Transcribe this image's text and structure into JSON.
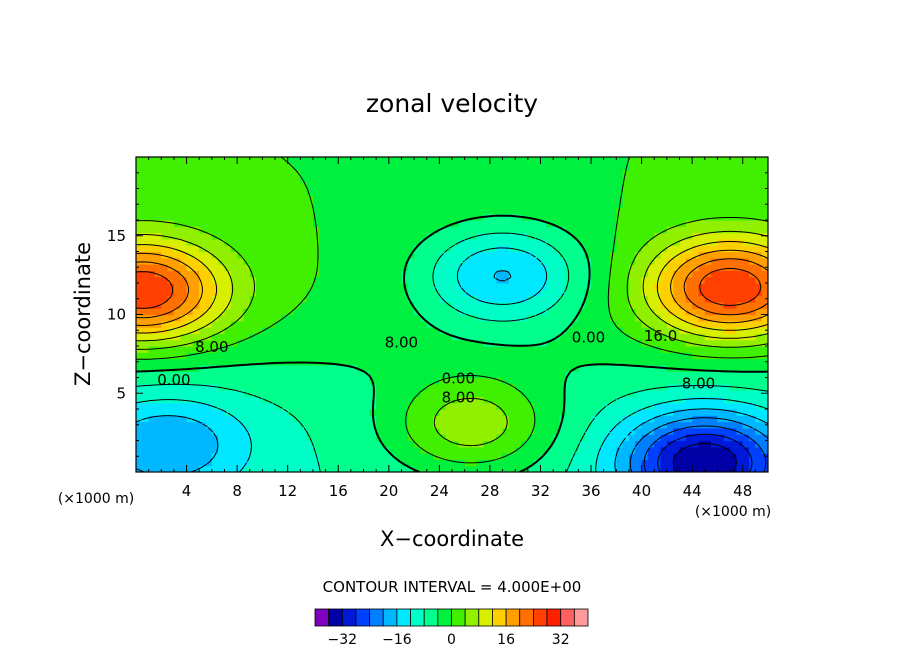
{
  "chart_data": {
    "type": "heatmap",
    "title": "zonal velocity",
    "xlabel": "X−coordinate",
    "ylabel": "Z−coordinate",
    "x_unit_label": "(×1000 m)",
    "y_unit_label": "(×1000 m)",
    "xlim": [
      0,
      50
    ],
    "ylim": [
      0,
      20
    ],
    "x_ticks": [
      "4",
      "8",
      "12",
      "16",
      "20",
      "24",
      "28",
      "32",
      "36",
      "40",
      "44",
      "48"
    ],
    "y_ticks": [
      "5",
      "10",
      "15"
    ],
    "x_tick_values": [
      4,
      8,
      12,
      16,
      20,
      24,
      28,
      32,
      36,
      40,
      44,
      48
    ],
    "y_tick_values": [
      5,
      10,
      15
    ],
    "grid": false,
    "contour_interval_text": "CONTOUR INTERVAL = 4.000E+00",
    "contour_interval": 4.0,
    "contour_labels": [
      {
        "text": "8.00",
        "x": 6.0,
        "z": 7.9
      },
      {
        "text": "0.00",
        "x": 3.0,
        "z": 5.8
      },
      {
        "text": "8.00",
        "x": 21.0,
        "z": 8.2
      },
      {
        "text": "0.00",
        "x": 25.5,
        "z": 5.9
      },
      {
        "text": "8.00",
        "x": 25.5,
        "z": 4.7
      },
      {
        "text": "0.00",
        "x": 35.8,
        "z": 8.5
      },
      {
        "text": "16.0",
        "x": 41.5,
        "z": 8.6
      },
      {
        "text": "8.00",
        "x": 44.5,
        "z": 5.6
      }
    ],
    "features": [
      {
        "kind": "max",
        "x": 0.5,
        "z": 11.5,
        "value": 28
      },
      {
        "kind": "max",
        "x": 47,
        "z": 11.7,
        "value": 28
      },
      {
        "kind": "min",
        "x": 29,
        "z": 12.5,
        "value": -16
      },
      {
        "kind": "min",
        "x": 45,
        "z": 0.6,
        "value": -28
      },
      {
        "kind": "min",
        "x": 2.5,
        "z": 1.8,
        "value": -12
      },
      {
        "kind": "max",
        "x": 26.5,
        "z": 3.0,
        "value": 14
      }
    ],
    "colorbar": {
      "levels": [
        -36,
        -32,
        -28,
        -24,
        -20,
        -16,
        -12,
        -8,
        -4,
        0,
        4,
        8,
        12,
        16,
        20,
        24,
        28,
        32,
        36,
        40
      ],
      "colors": [
        "#7f00bf",
        "#0000a6",
        "#0018d8",
        "#0040ff",
        "#0080ff",
        "#00b8ff",
        "#00e8ff",
        "#00ffc8",
        "#00ff8c",
        "#00f040",
        "#40f000",
        "#90f000",
        "#d8f000",
        "#ffd000",
        "#ffa000",
        "#ff7000",
        "#ff4000",
        "#ff2000",
        "#ff6060",
        "#ff9a9a"
      ],
      "tick_labels": [
        "−32",
        "−16",
        "0",
        "16",
        "32"
      ],
      "tick_values": [
        -32,
        -16,
        0,
        16,
        32
      ]
    }
  }
}
